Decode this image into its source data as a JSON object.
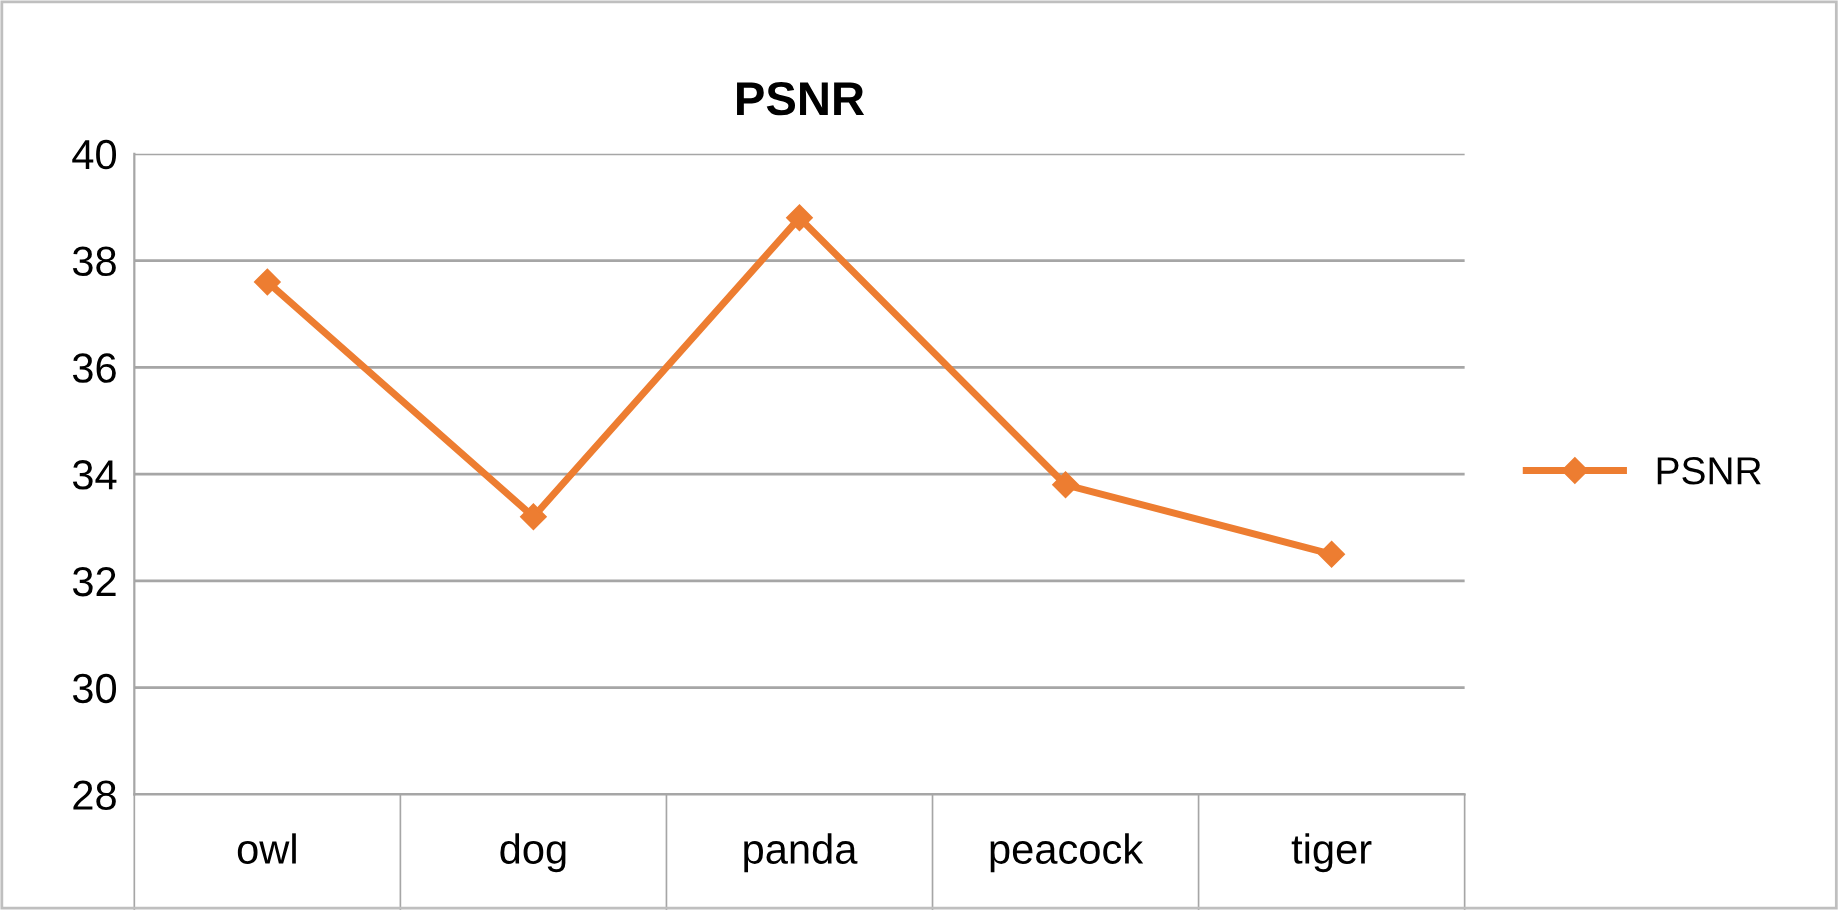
{
  "chart_data": {
    "type": "line",
    "title": "PSNR",
    "categories": [
      "owl",
      "dog",
      "panda",
      "peacock",
      "tiger"
    ],
    "series": [
      {
        "name": "PSNR",
        "color": "#ed7d31",
        "values": [
          37.6,
          33.2,
          38.8,
          33.8,
          32.5
        ]
      }
    ],
    "ylim": [
      28,
      40
    ],
    "yticks": [
      28,
      30,
      32,
      34,
      36,
      38,
      40
    ],
    "grid": "y",
    "legend": "right",
    "marker": "diamond",
    "line_style": "solid"
  }
}
